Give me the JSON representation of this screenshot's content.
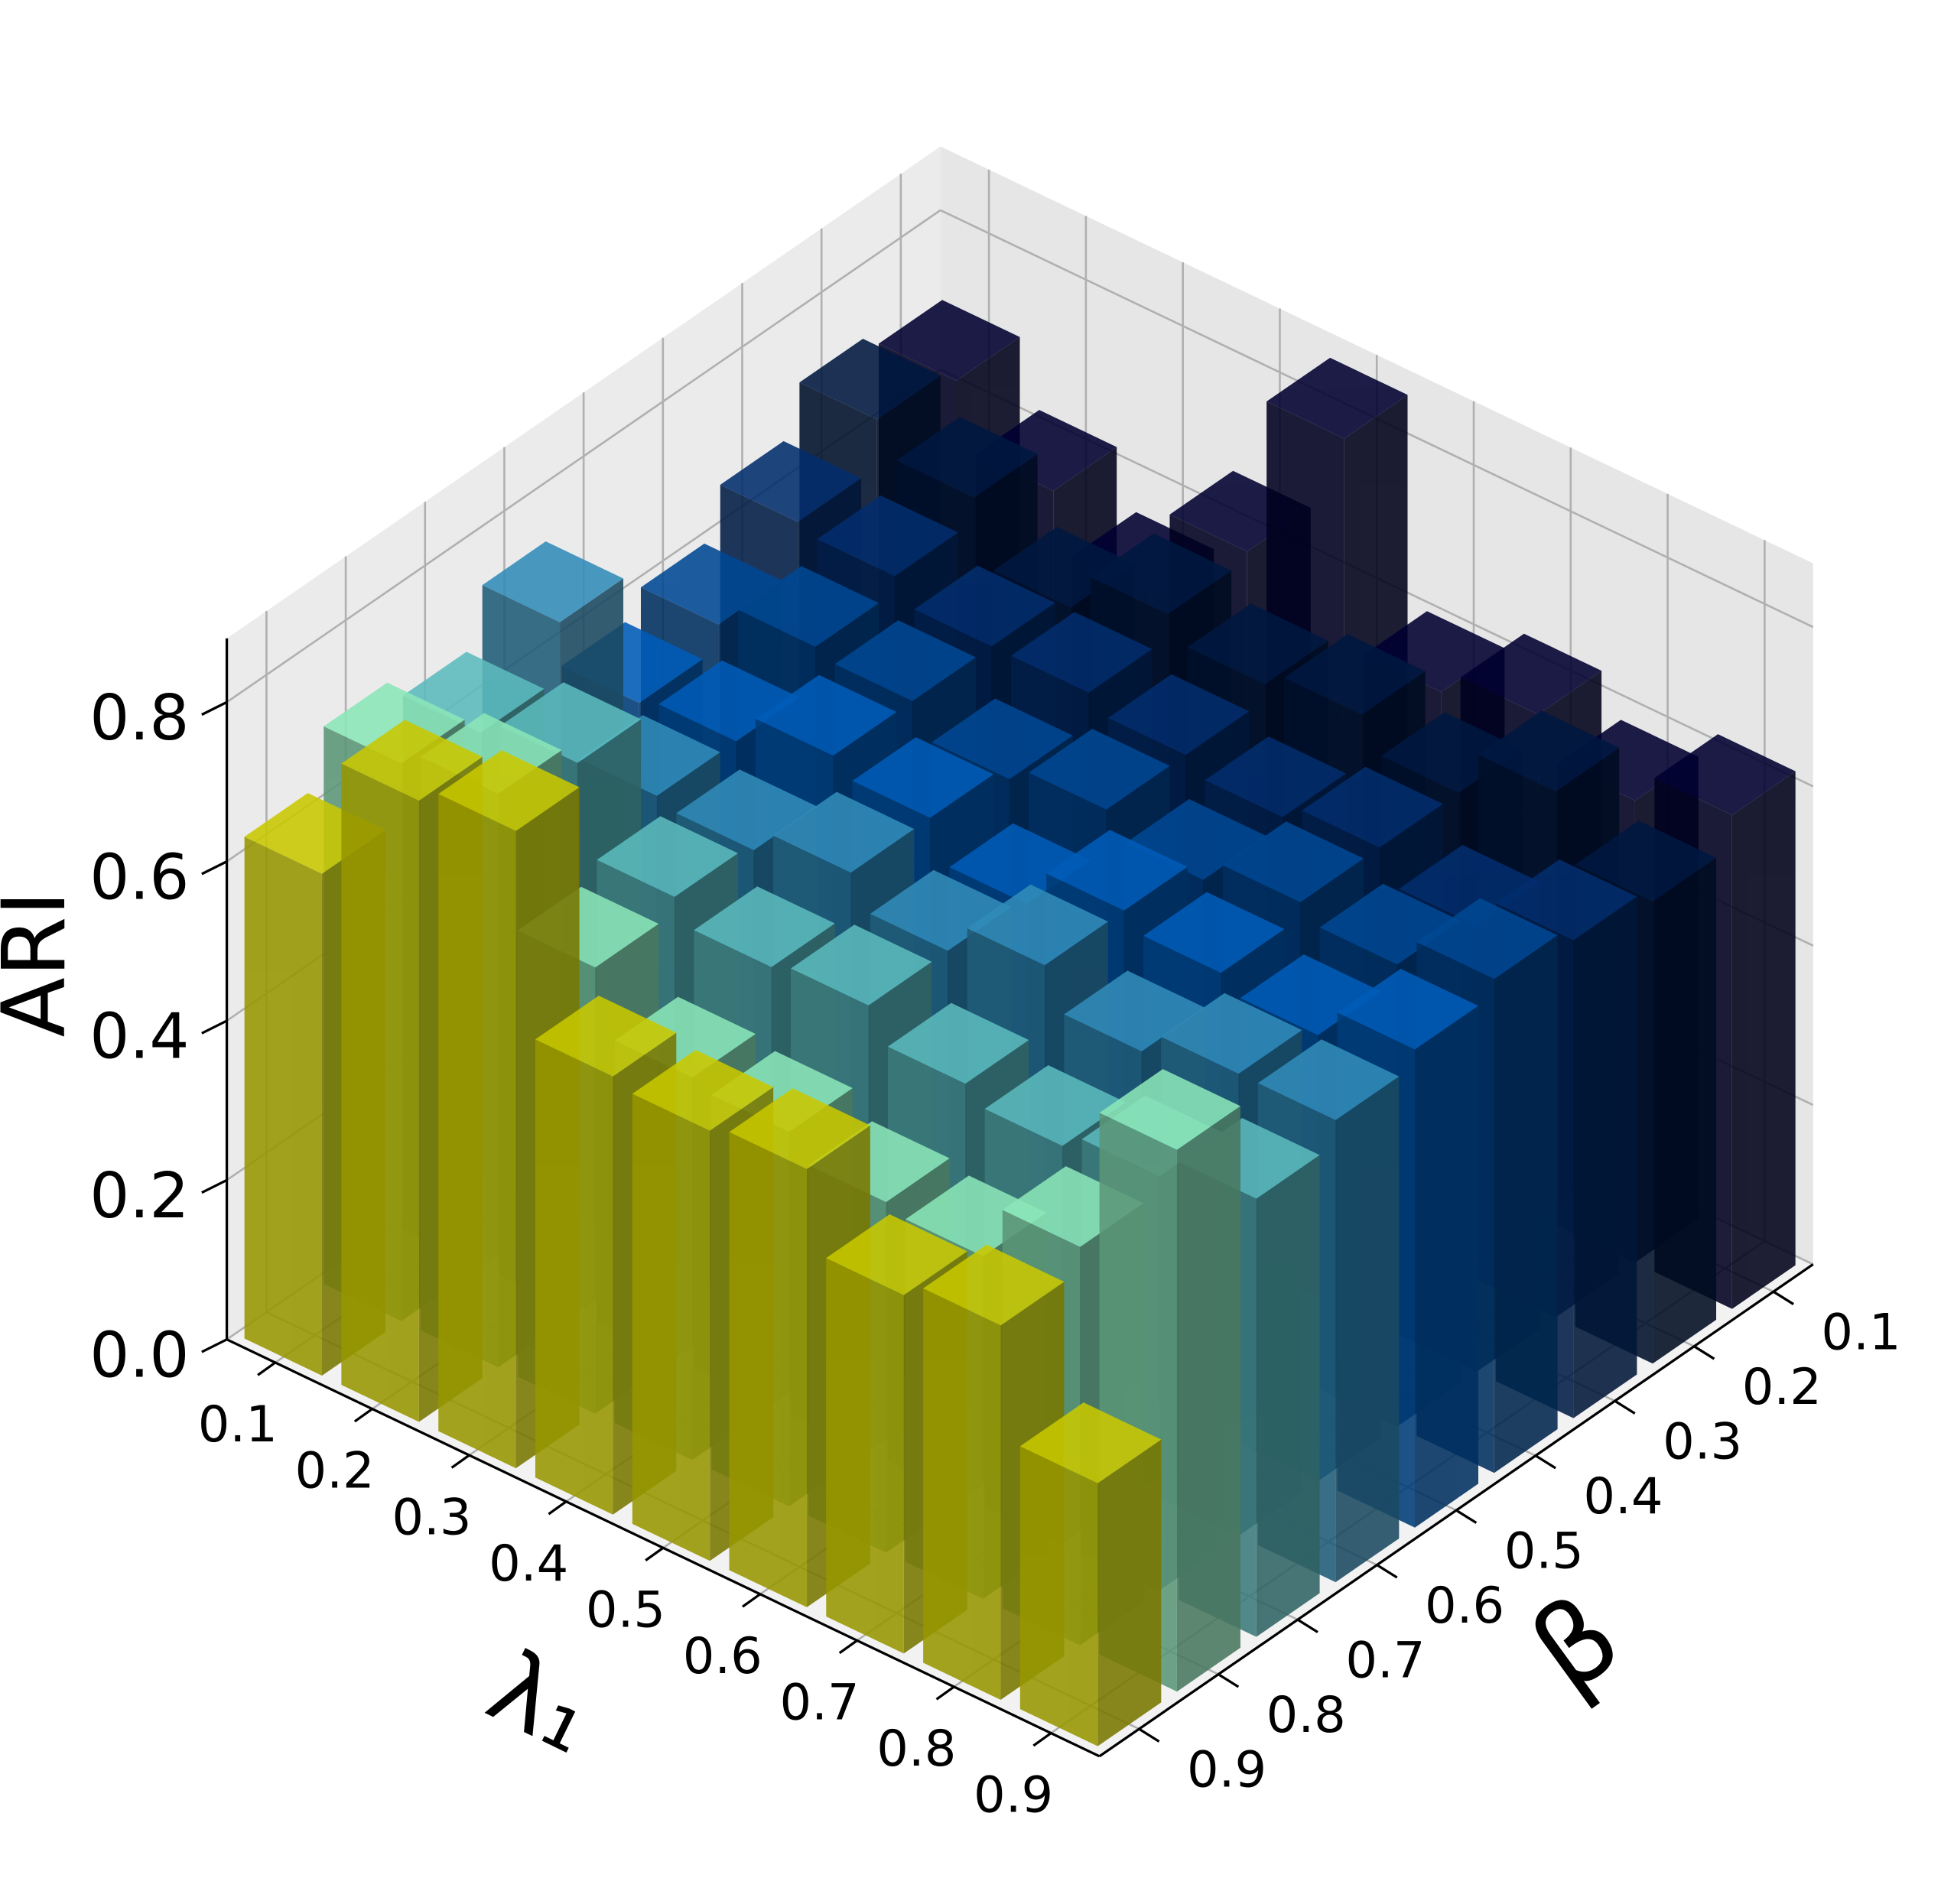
{
  "chart_data": {
    "type": "bar3d",
    "xlabel": "λ₁",
    "ylabel": "β",
    "zlabel": "ARI",
    "x": [
      0.1,
      0.2,
      0.3,
      0.4,
      0.5,
      0.6,
      0.7,
      0.8,
      0.9
    ],
    "y": [
      0.1,
      0.2,
      0.3,
      0.4,
      0.5,
      0.6,
      0.7,
      0.8,
      0.9
    ],
    "colors": [
      "#00002b",
      "#001538",
      "#02275f",
      "#003f80",
      "#0050a0",
      "#2b7aa1",
      "#4fa3a4",
      "#79c8a0",
      "#c9c800"
    ],
    "values": [
      [
        0.7,
        0.62,
        0.55,
        0.66,
        0.86,
        0.6,
        0.63,
        0.58,
        0.62
      ],
      [
        0.72,
        0.68,
        0.6,
        0.65,
        0.62,
        0.64,
        0.6,
        0.66,
        0.58
      ],
      [
        0.66,
        0.65,
        0.62,
        0.62,
        0.6,
        0.58,
        0.6,
        0.56,
        0.6
      ],
      [
        0.6,
        0.63,
        0.62,
        0.58,
        0.6,
        0.57,
        0.6,
        0.58,
        0.62
      ],
      [
        0.57,
        0.58,
        0.62,
        0.6,
        0.55,
        0.6,
        0.58,
        0.56,
        0.6
      ],
      [
        0.74,
        0.58,
        0.57,
        0.6,
        0.56,
        0.6,
        0.55,
        0.58,
        0.58
      ],
      [
        0.67,
        0.69,
        0.58,
        0.55,
        0.56,
        0.52,
        0.5,
        0.52,
        0.55
      ],
      [
        0.7,
        0.72,
        0.56,
        0.48,
        0.47,
        0.44,
        0.43,
        0.5,
        0.68
      ],
      [
        0.63,
        0.78,
        0.8,
        0.55,
        0.54,
        0.55,
        0.45,
        0.47,
        0.33
      ]
    ],
    "xlim": [
      0.05,
      0.95
    ],
    "ylim": [
      0.05,
      0.95
    ],
    "zlim": [
      0,
      0.88
    ],
    "xticks": [
      0.1,
      0.2,
      0.3,
      0.4,
      0.5,
      0.6,
      0.7,
      0.8,
      0.9
    ],
    "yticks": [
      0.1,
      0.2,
      0.3,
      0.4,
      0.5,
      0.6,
      0.7,
      0.8,
      0.9
    ],
    "zticks": [
      {
        "value": 0,
        "label": "0.0"
      },
      0.2,
      0.4,
      0.6,
      0.8
    ],
    "grid": true
  }
}
